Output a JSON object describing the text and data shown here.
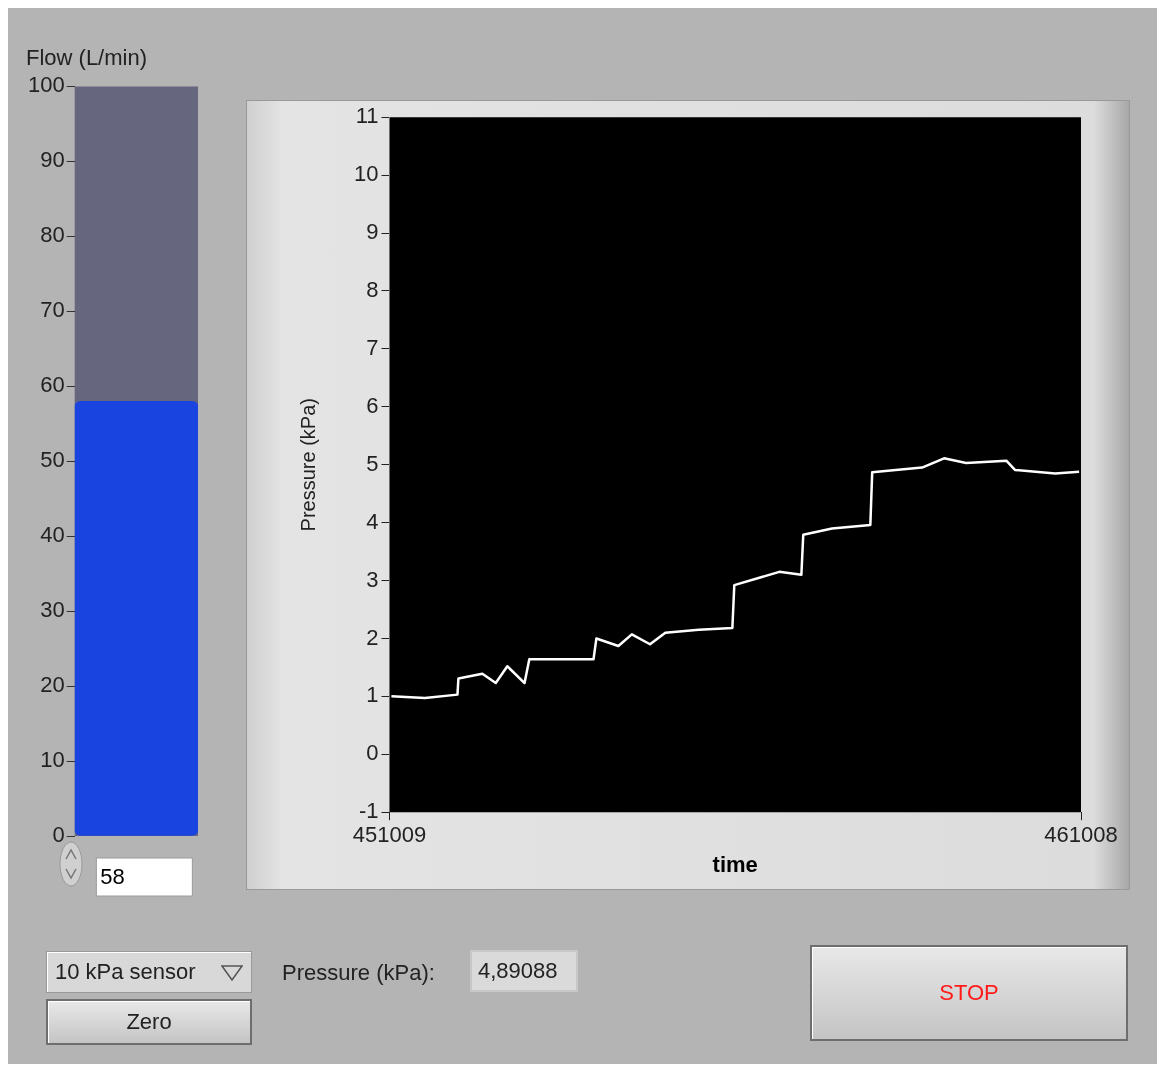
{
  "chart_data": [
    {
      "type": "bar",
      "title": "Flow (L/min)",
      "categories": [
        null
      ],
      "values": [
        58
      ],
      "color": "#1a44e0",
      "ylim": [
        0,
        100
      ],
      "yticks": [
        0,
        10,
        20,
        30,
        40,
        50,
        60,
        70,
        80,
        90,
        100
      ],
      "data_labels": true
    },
    {
      "type": "line",
      "xlabel": "time",
      "ylabel": "Pressure (kPa)",
      "x": [
        451037,
        451521,
        451992,
        452006,
        452352,
        452546,
        452713,
        452962,
        453031,
        453959,
        454001,
        454319,
        454513,
        454776,
        454998,
        455483,
        455967,
        455995,
        456646,
        456965,
        456992,
        457408,
        457962,
        457989,
        458710,
        459028,
        459347,
        459928,
        460053,
        460635,
        460981
      ],
      "values": [
        1.0,
        0.97,
        1.03,
        1.31,
        1.39,
        1.23,
        1.52,
        1.23,
        1.64,
        1.64,
        2.0,
        1.87,
        2.07,
        1.9,
        2.1,
        2.15,
        2.18,
        2.92,
        3.15,
        3.1,
        3.79,
        3.9,
        3.96,
        4.87,
        4.95,
        5.11,
        5.03,
        5.07,
        4.91,
        4.85,
        4.88
      ],
      "color": "#ffffff",
      "xlim": [
        451009,
        461008
      ],
      "xticks": [
        451009,
        461008
      ],
      "ylim": [
        -1,
        11
      ],
      "yticks": [
        -1,
        0,
        1,
        2,
        3,
        4,
        5,
        6,
        7,
        8,
        9,
        10,
        11
      ],
      "grid": false
    },
    {
      "type": "other",
      "annotations": [
        "10 kPa sensor",
        "Zero",
        "Pressure (kPa):",
        "4,89088",
        "STOP"
      ]
    }
  ]
}
